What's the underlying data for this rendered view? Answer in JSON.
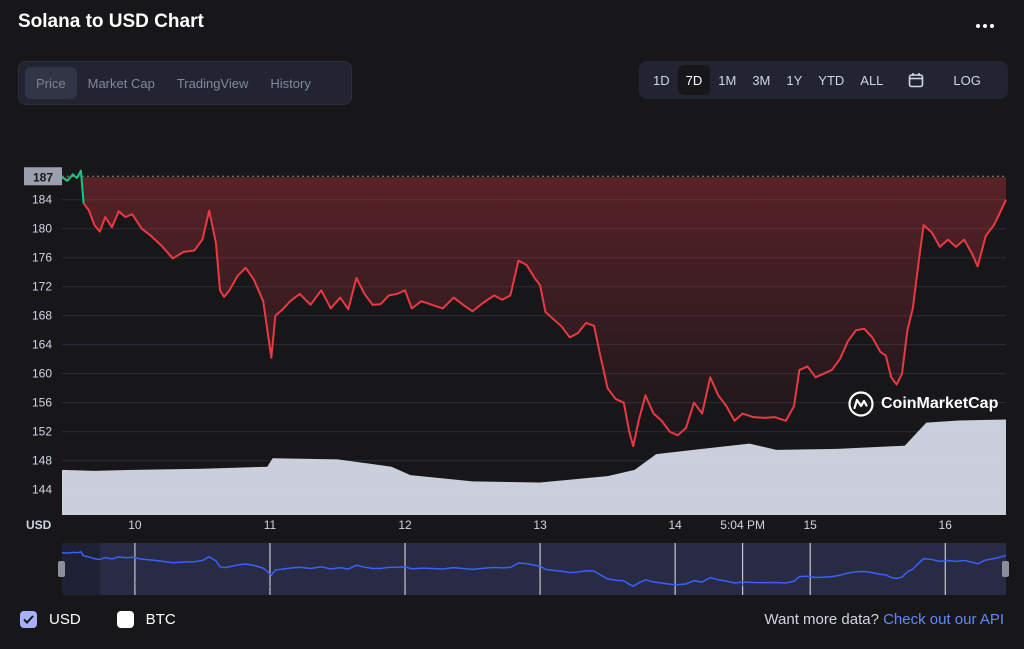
{
  "header": {
    "title": "Solana to USD Chart"
  },
  "tabs": [
    {
      "label": "Price",
      "active": true
    },
    {
      "label": "Market Cap",
      "active": false
    },
    {
      "label": "TradingView",
      "active": false
    },
    {
      "label": "History",
      "active": false
    }
  ],
  "ranges": {
    "items": [
      "1D",
      "7D",
      "1M",
      "3M",
      "1Y",
      "YTD",
      "ALL"
    ],
    "active": "7D",
    "calendar_icon": "calendar-icon",
    "log_label": "LOG"
  },
  "watermark": "CoinMarketCap",
  "footer": {
    "usd_label": "USD",
    "btc_label": "BTC",
    "api_prompt": "Want more data?",
    "api_link": "Check out our API"
  },
  "colors": {
    "down": "#ea3943",
    "up": "#16c784",
    "volume": "#d5d9e6",
    "navigator_line": "#3861fb",
    "link": "#6188ff"
  },
  "chart_data": {
    "type": "line",
    "ylabel": "USD",
    "yticks": [
      144,
      148,
      152,
      156,
      160,
      164,
      168,
      172,
      176,
      180,
      184
    ],
    "ylim": [
      140.5,
      195
    ],
    "current_price_label": "187",
    "x_tick_labels": [
      "10",
      "11",
      "12",
      "13",
      "14",
      "5:04 PM",
      "15",
      "16"
    ],
    "x_tick_positions": [
      10,
      11,
      12,
      13,
      14,
      14.5,
      15,
      16
    ],
    "xlim": [
      9.46,
      16.45
    ],
    "series": [
      {
        "values": [
          [
            9.46,
            187.1
          ],
          [
            9.5,
            186.6
          ],
          [
            9.54,
            187.5
          ],
          [
            9.57,
            187.0
          ],
          [
            9.6,
            188.0
          ],
          [
            9.62,
            183.5
          ],
          [
            9.66,
            182.5
          ],
          [
            9.7,
            180.5
          ],
          [
            9.74,
            179.6
          ],
          [
            9.78,
            181.6
          ],
          [
            9.83,
            180.2
          ],
          [
            9.88,
            182.4
          ],
          [
            9.93,
            181.6
          ],
          [
            9.98,
            182.0
          ],
          [
            10.05,
            180.0
          ],
          [
            10.12,
            179.0
          ],
          [
            10.2,
            177.6
          ],
          [
            10.28,
            175.9
          ],
          [
            10.36,
            176.8
          ],
          [
            10.44,
            177.0
          ],
          [
            10.5,
            178.5
          ],
          [
            10.55,
            182.5
          ],
          [
            10.6,
            178.0
          ],
          [
            10.63,
            171.5
          ],
          [
            10.66,
            170.6
          ],
          [
            10.7,
            171.5
          ],
          [
            10.76,
            173.5
          ],
          [
            10.82,
            174.6
          ],
          [
            10.88,
            173.0
          ],
          [
            10.95,
            170.0
          ],
          [
            11.01,
            162.2
          ],
          [
            11.04,
            168.0
          ],
          [
            11.09,
            168.8
          ],
          [
            11.15,
            170.0
          ],
          [
            11.22,
            171.0
          ],
          [
            11.3,
            169.5
          ],
          [
            11.38,
            171.5
          ],
          [
            11.45,
            169.0
          ],
          [
            11.52,
            170.5
          ],
          [
            11.58,
            168.9
          ],
          [
            11.64,
            173.2
          ],
          [
            11.7,
            171.0
          ],
          [
            11.76,
            169.5
          ],
          [
            11.82,
            169.6
          ],
          [
            11.88,
            170.8
          ],
          [
            11.94,
            171.0
          ],
          [
            12.0,
            171.5
          ],
          [
            12.05,
            169.0
          ],
          [
            12.12,
            170.0
          ],
          [
            12.2,
            169.5
          ],
          [
            12.28,
            169.0
          ],
          [
            12.36,
            170.5
          ],
          [
            12.43,
            169.5
          ],
          [
            12.5,
            168.6
          ],
          [
            12.58,
            169.8
          ],
          [
            12.66,
            170.8
          ],
          [
            12.72,
            170.2
          ],
          [
            12.78,
            170.8
          ],
          [
            12.84,
            175.6
          ],
          [
            12.9,
            175.0
          ],
          [
            12.96,
            173.2
          ],
          [
            13.0,
            172.2
          ],
          [
            13.04,
            168.5
          ],
          [
            13.1,
            167.5
          ],
          [
            13.16,
            166.5
          ],
          [
            13.22,
            165.0
          ],
          [
            13.28,
            165.6
          ],
          [
            13.34,
            167.0
          ],
          [
            13.4,
            166.6
          ],
          [
            13.44,
            163.0
          ],
          [
            13.5,
            158.0
          ],
          [
            13.56,
            156.5
          ],
          [
            13.62,
            156.0
          ],
          [
            13.66,
            152.0
          ],
          [
            13.69,
            150.0
          ],
          [
            13.73,
            153.5
          ],
          [
            13.78,
            157.0
          ],
          [
            13.84,
            154.5
          ],
          [
            13.9,
            153.5
          ],
          [
            13.96,
            152.0
          ],
          [
            14.02,
            151.5
          ],
          [
            14.08,
            152.5
          ],
          [
            14.14,
            156.0
          ],
          [
            14.2,
            154.5
          ],
          [
            14.26,
            159.5
          ],
          [
            14.32,
            157.0
          ],
          [
            14.38,
            155.5
          ],
          [
            14.44,
            153.5
          ],
          [
            14.5,
            154.5
          ],
          [
            14.58,
            154.0
          ],
          [
            14.66,
            153.9
          ],
          [
            14.74,
            154.0
          ],
          [
            14.82,
            153.5
          ],
          [
            14.88,
            155.5
          ],
          [
            14.92,
            160.5
          ],
          [
            14.98,
            161.0
          ],
          [
            15.04,
            159.5
          ],
          [
            15.1,
            160.0
          ],
          [
            15.16,
            160.5
          ],
          [
            15.22,
            162.0
          ],
          [
            15.28,
            164.5
          ],
          [
            15.34,
            166.0
          ],
          [
            15.4,
            166.2
          ],
          [
            15.46,
            165.0
          ],
          [
            15.52,
            163.0
          ],
          [
            15.56,
            162.5
          ],
          [
            15.6,
            159.5
          ],
          [
            15.64,
            158.5
          ],
          [
            15.68,
            160.0
          ],
          [
            15.72,
            166.0
          ],
          [
            15.76,
            169.0
          ],
          [
            15.8,
            175.0
          ],
          [
            15.84,
            180.5
          ],
          [
            15.9,
            179.5
          ],
          [
            15.96,
            177.5
          ],
          [
            16.02,
            178.5
          ],
          [
            16.08,
            177.5
          ],
          [
            16.14,
            178.5
          ],
          [
            16.2,
            176.5
          ],
          [
            16.24,
            174.8
          ],
          [
            16.3,
            179.0
          ],
          [
            16.36,
            180.5
          ],
          [
            16.4,
            182.0
          ],
          [
            16.45,
            184.0
          ]
        ]
      }
    ],
    "volume_profile": [
      [
        9.46,
        0.43
      ],
      [
        9.7,
        0.42
      ],
      [
        10.0,
        0.43
      ],
      [
        10.5,
        0.44
      ],
      [
        10.98,
        0.46
      ],
      [
        11.02,
        0.54
      ],
      [
        11.5,
        0.53
      ],
      [
        11.9,
        0.46
      ],
      [
        12.04,
        0.38
      ],
      [
        12.5,
        0.32
      ],
      [
        13.0,
        0.31
      ],
      [
        13.5,
        0.37
      ],
      [
        13.7,
        0.43
      ],
      [
        13.86,
        0.58
      ],
      [
        14.2,
        0.63
      ],
      [
        14.55,
        0.68
      ],
      [
        14.75,
        0.62
      ],
      [
        15.2,
        0.63
      ],
      [
        15.7,
        0.66
      ],
      [
        15.86,
        0.88
      ],
      [
        16.1,
        0.9
      ],
      [
        16.45,
        0.91
      ]
    ],
    "navigator_labels": [
      "10",
      "11",
      "12",
      "13",
      "14",
      "5:04 PM",
      "15",
      "16"
    ]
  }
}
